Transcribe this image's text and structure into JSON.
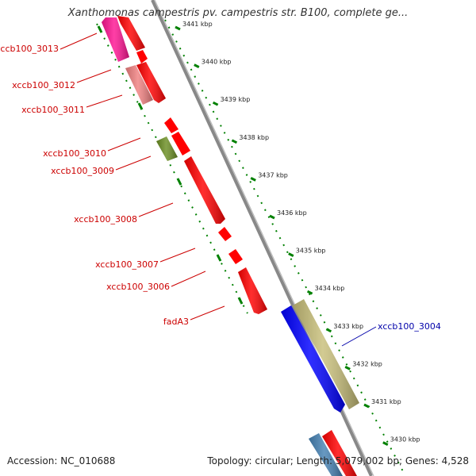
{
  "title": "Xanthomonas campestris pv. campestris str. B100, complete ge...",
  "footer": {
    "accession": "Accession: NC_010688",
    "topology": "Topology: circular; Length: 5,079,002 bp; Genes: 4,528"
  },
  "ticks": [
    "3441 kbp",
    "3440 kbp",
    "3439 kbp",
    "3438 kbp",
    "3437 kbp",
    "3436 kbp",
    "3435 kbp",
    "3434 kbp",
    "3433 kbp",
    "3432 kbp",
    "3431 kbp",
    "3430 kbp"
  ],
  "gene_labels": [
    {
      "text": "xccb100_3013",
      "color": "#cc0000"
    },
    {
      "text": "xccb100_3012",
      "color": "#cc0000"
    },
    {
      "text": "xccb100_3011",
      "color": "#cc0000"
    },
    {
      "text": "xccb100_3010",
      "color": "#cc0000"
    },
    {
      "text": "xccb100_3009",
      "color": "#cc0000"
    },
    {
      "text": "xccb100_3008",
      "color": "#cc0000"
    },
    {
      "text": "xccb100_3007",
      "color": "#cc0000"
    },
    {
      "text": "xccb100_3006",
      "color": "#cc0000"
    },
    {
      "text": "fadA3",
      "color": "#cc0000"
    },
    {
      "text": "xccb100_3004",
      "color": "#0000aa"
    }
  ],
  "colors": {
    "red_gene": "#ff0000",
    "magenta_gene": "#ff1493",
    "pink_gene": "#f08080",
    "olive_gene": "#6b8e23",
    "blue_gene": "#0000ff",
    "khaki_gene": "#c8bf7a",
    "steel_gene": "#4682b4",
    "backbone": "#888888",
    "tick_dots": "#008000"
  }
}
